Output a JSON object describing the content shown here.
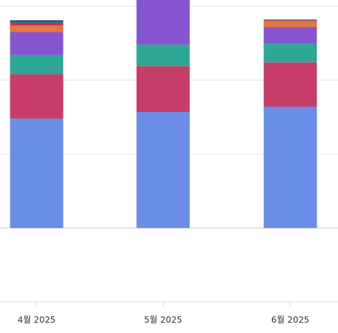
{
  "chart_data": {
    "type": "bar",
    "stacked": true,
    "categories": [
      "4월 2025",
      "5월 2025",
      "6월 2025"
    ],
    "grid": true,
    "legend": "none",
    "series": [
      {
        "color": "#6a8de8",
        "values": [
          148,
          157,
          164
        ]
      },
      {
        "color": "#c53d68",
        "values": [
          60,
          62,
          60
        ]
      },
      {
        "color": "#2ea895",
        "values": [
          26,
          29,
          26
        ]
      },
      {
        "color": "#8754cf",
        "values": [
          31,
          61,
          22
        ]
      },
      {
        "color": "#e8763f",
        "values": [
          9,
          8,
          8
        ]
      },
      {
        "color": "#b53357",
        "values": [
          3,
          0,
          1
        ]
      },
      {
        "color": "#2d6f60",
        "values": [
          2,
          2,
          1
        ]
      },
      {
        "color": "#3b3e8c",
        "values": [
          2,
          1,
          0
        ]
      }
    ]
  }
}
